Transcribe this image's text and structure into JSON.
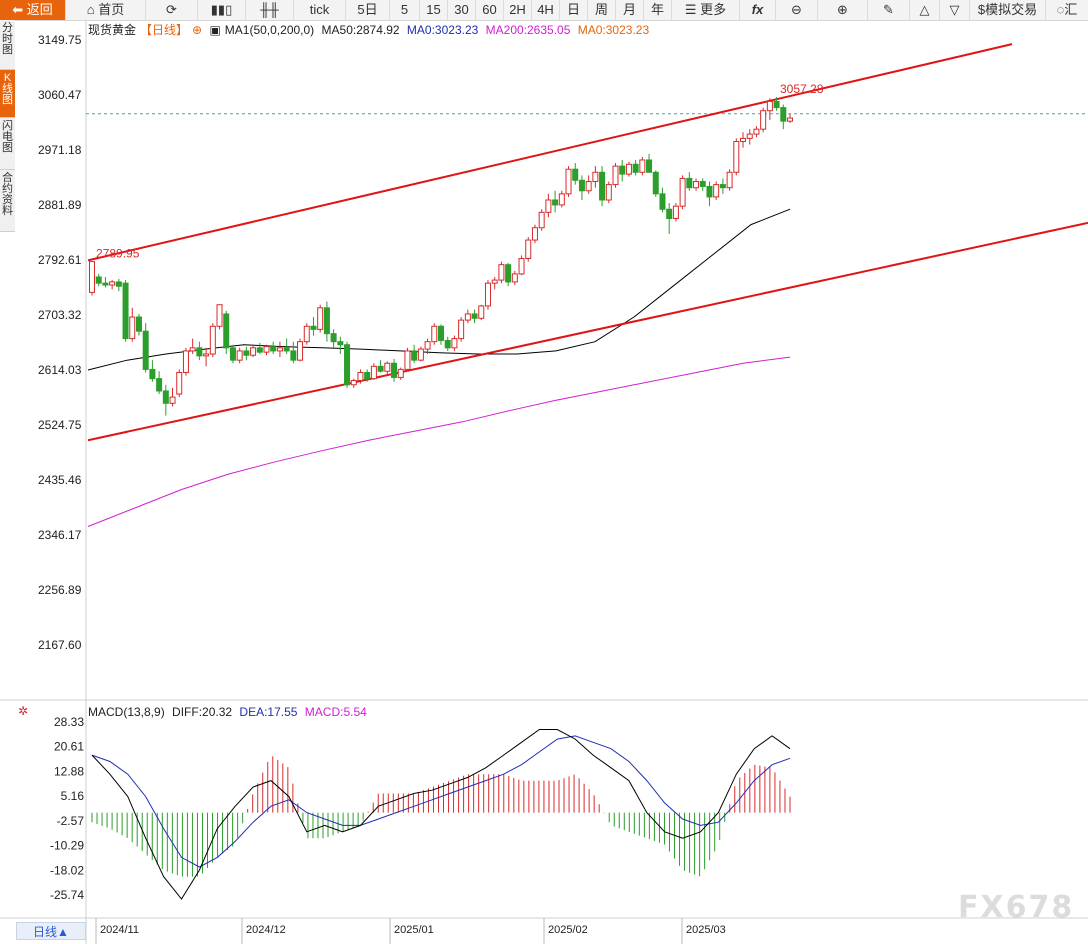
{
  "toolbar": {
    "back": "返回",
    "home": "首页",
    "tick": "tick",
    "five_day": "5日",
    "p5": "5",
    "p15": "15",
    "p30": "30",
    "p60": "60",
    "p2h": "2H",
    "p4h": "4H",
    "day": "日",
    "week": "周",
    "month": "月",
    "year": "年",
    "more": "更多",
    "fx": "fx",
    "sim_trade": "模拟交易",
    "last": "汇"
  },
  "sidebar": {
    "tabs": [
      {
        "label": "分时图"
      },
      {
        "label": "K线图"
      },
      {
        "label": "闪电图"
      },
      {
        "label": "合约资料"
      }
    ]
  },
  "info": {
    "symbol": "现货黄金",
    "period": "【日线】",
    "ma1": "MA1(50,0,200,0)",
    "ma50": "MA50:2874.92",
    "ma0a": "MA0:3023.23",
    "ma200": "MA200:2635.05",
    "ma0b": "MA0:3023.23"
  },
  "macd": {
    "label": "MACD(13,8,9)",
    "diff": "DIFF:20.32",
    "dea": "DEA:17.55",
    "macd": "MACD:5.54"
  },
  "period_button": "日线▲",
  "watermark": "FX678",
  "colors": {
    "up": "#d92a2a",
    "down": "#2b9e2b",
    "ma50": "#000000",
    "ma200": "#d21ed2",
    "dea": "#1f2fb3",
    "channel": "#e01414",
    "accent": "#e8640c"
  },
  "chart_data": {
    "type": "candlestick",
    "price_ticks": [
      "3149.75",
      "3060.47",
      "2971.18",
      "2881.89",
      "2792.61",
      "2703.32",
      "2614.03",
      "2524.75",
      "2435.46",
      "2346.17",
      "2256.89",
      "2167.60"
    ],
    "macd_ticks": [
      "28.33",
      "20.61",
      "12.88",
      "5.16",
      "-2.57",
      "-10.29",
      "-18.02",
      "-25.74"
    ],
    "date_labels": [
      "2024/11",
      "2024/12",
      "2025/01",
      "2025/02",
      "2025/03"
    ],
    "annotations": {
      "high_label": "3057.28",
      "low_label": "2789.95"
    },
    "current_price": 3030,
    "candles": [
      [
        2740,
        2790,
        2735,
        2790
      ],
      [
        2765,
        2770,
        2750,
        2755
      ],
      [
        2755,
        2765,
        2748,
        2752
      ],
      [
        2752,
        2760,
        2745,
        2757
      ],
      [
        2757,
        2762,
        2742,
        2750
      ],
      [
        2755,
        2760,
        2660,
        2665
      ],
      [
        2665,
        2715,
        2660,
        2700
      ],
      [
        2700,
        2705,
        2670,
        2677
      ],
      [
        2677,
        2690,
        2610,
        2615
      ],
      [
        2615,
        2630,
        2595,
        2600
      ],
      [
        2600,
        2612,
        2575,
        2580
      ],
      [
        2580,
        2590,
        2540,
        2560
      ],
      [
        2560,
        2585,
        2555,
        2570
      ],
      [
        2575,
        2615,
        2570,
        2610
      ],
      [
        2610,
        2650,
        2605,
        2645
      ],
      [
        2645,
        2665,
        2640,
        2650
      ],
      [
        2650,
        2660,
        2630,
        2637
      ],
      [
        2637,
        2650,
        2620,
        2640
      ],
      [
        2640,
        2690,
        2635,
        2685
      ],
      [
        2685,
        2720,
        2680,
        2720
      ],
      [
        2705,
        2710,
        2640,
        2650
      ],
      [
        2650,
        2655,
        2625,
        2630
      ],
      [
        2630,
        2650,
        2625,
        2645
      ],
      [
        2645,
        2652,
        2630,
        2638
      ],
      [
        2638,
        2655,
        2635,
        2650
      ],
      [
        2650,
        2658,
        2640,
        2643
      ],
      [
        2643,
        2655,
        2638,
        2652
      ],
      [
        2652,
        2660,
        2640,
        2645
      ],
      [
        2645,
        2660,
        2635,
        2650
      ],
      [
        2650,
        2665,
        2640,
        2645
      ],
      [
        2645,
        2660,
        2625,
        2630
      ],
      [
        2630,
        2665,
        2628,
        2660
      ],
      [
        2660,
        2690,
        2655,
        2685
      ],
      [
        2685,
        2700,
        2670,
        2680
      ],
      [
        2680,
        2720,
        2675,
        2715
      ],
      [
        2715,
        2725,
        2660,
        2673
      ],
      [
        2673,
        2680,
        2650,
        2660
      ],
      [
        2660,
        2668,
        2640,
        2655
      ],
      [
        2655,
        2660,
        2585,
        2590
      ],
      [
        2590,
        2600,
        2585,
        2597
      ],
      [
        2597,
        2615,
        2592,
        2610
      ],
      [
        2610,
        2615,
        2595,
        2600
      ],
      [
        2600,
        2625,
        2598,
        2620
      ],
      [
        2620,
        2630,
        2610,
        2612
      ],
      [
        2612,
        2628,
        2605,
        2625
      ],
      [
        2625,
        2632,
        2595,
        2602
      ],
      [
        2602,
        2618,
        2598,
        2615
      ],
      [
        2615,
        2650,
        2612,
        2645
      ],
      [
        2645,
        2655,
        2625,
        2630
      ],
      [
        2630,
        2652,
        2628,
        2648
      ],
      [
        2648,
        2665,
        2640,
        2660
      ],
      [
        2660,
        2690,
        2655,
        2685
      ],
      [
        2685,
        2688,
        2655,
        2662
      ],
      [
        2662,
        2668,
        2645,
        2650
      ],
      [
        2650,
        2670,
        2645,
        2665
      ],
      [
        2665,
        2700,
        2660,
        2695
      ],
      [
        2695,
        2712,
        2690,
        2705
      ],
      [
        2705,
        2712,
        2690,
        2698
      ],
      [
        2698,
        2720,
        2695,
        2718
      ],
      [
        2718,
        2760,
        2712,
        2755
      ],
      [
        2755,
        2765,
        2745,
        2760
      ],
      [
        2760,
        2790,
        2755,
        2785
      ],
      [
        2785,
        2788,
        2750,
        2757
      ],
      [
        2757,
        2775,
        2752,
        2770
      ],
      [
        2770,
        2800,
        2768,
        2795
      ],
      [
        2795,
        2830,
        2790,
        2825
      ],
      [
        2825,
        2850,
        2820,
        2845
      ],
      [
        2845,
        2875,
        2840,
        2870
      ],
      [
        2870,
        2900,
        2862,
        2890
      ],
      [
        2890,
        2905,
        2870,
        2882
      ],
      [
        2882,
        2905,
        2878,
        2900
      ],
      [
        2900,
        2945,
        2895,
        2940
      ],
      [
        2940,
        2950,
        2915,
        2922
      ],
      [
        2922,
        2930,
        2890,
        2905
      ],
      [
        2905,
        2930,
        2900,
        2920
      ],
      [
        2920,
        2945,
        2910,
        2935
      ],
      [
        2935,
        2945,
        2880,
        2890
      ],
      [
        2890,
        2920,
        2885,
        2915
      ],
      [
        2915,
        2950,
        2910,
        2945
      ],
      [
        2945,
        2955,
        2920,
        2932
      ],
      [
        2932,
        2952,
        2928,
        2948
      ],
      [
        2948,
        2955,
        2930,
        2935
      ],
      [
        2935,
        2960,
        2930,
        2955
      ],
      [
        2955,
        2965,
        2940,
        2935
      ],
      [
        2935,
        2938,
        2895,
        2900
      ],
      [
        2900,
        2910,
        2870,
        2875
      ],
      [
        2875,
        2885,
        2835,
        2860
      ],
      [
        2860,
        2885,
        2855,
        2880
      ],
      [
        2880,
        2930,
        2875,
        2925
      ],
      [
        2925,
        2935,
        2905,
        2910
      ],
      [
        2910,
        2925,
        2905,
        2920
      ],
      [
        2920,
        2925,
        2905,
        2912
      ],
      [
        2912,
        2920,
        2880,
        2895
      ],
      [
        2895,
        2920,
        2890,
        2915
      ],
      [
        2915,
        2925,
        2900,
        2910
      ],
      [
        2910,
        2940,
        2905,
        2935
      ],
      [
        2935,
        2990,
        2930,
        2985
      ],
      [
        2985,
        3000,
        2975,
        2990
      ],
      [
        2990,
        3005,
        2980,
        2997
      ],
      [
        2997,
        3010,
        2992,
        3005
      ],
      [
        3005,
        3040,
        3000,
        3035
      ],
      [
        3035,
        3055,
        3020,
        3050
      ],
      [
        3050,
        3057,
        3035,
        3040
      ],
      [
        3040,
        3045,
        3005,
        3018
      ],
      [
        3018,
        3030,
        3015,
        3023
      ]
    ],
    "ma50": {
      "name": "MA50",
      "values": [
        2614,
        2630,
        2640,
        2648,
        2655,
        2652,
        2650,
        2648,
        2645,
        2642,
        2640,
        2640,
        2645,
        2660,
        2700,
        2750,
        2800,
        2850,
        2875
      ]
    },
    "ma200": {
      "name": "MA200",
      "values": [
        2360,
        2390,
        2420,
        2445,
        2465,
        2483,
        2500,
        2515,
        2530,
        2548,
        2565,
        2580,
        2595,
        2610,
        2625,
        2635
      ]
    },
    "channel": {
      "upper": [
        2792,
        3143
      ],
      "lower": [
        2500,
        2853
      ]
    },
    "macd_series": {
      "diff": [
        18,
        12,
        5,
        -8,
        -20,
        -27,
        -18,
        -5,
        2,
        8,
        10,
        5,
        -6,
        -4,
        -6,
        -4,
        2,
        4,
        6,
        7,
        9,
        11,
        14,
        18,
        22,
        26,
        26,
        23,
        18,
        14,
        10,
        0,
        -6,
        -8,
        -6,
        0,
        12,
        20,
        24,
        20
      ],
      "dea": [
        18,
        16,
        12,
        5,
        -5,
        -14,
        -17,
        -14,
        -9,
        -3,
        2,
        4,
        0,
        -2,
        -4,
        -4,
        -2,
        0,
        2,
        4,
        6,
        8,
        10,
        12,
        15,
        19,
        23,
        24,
        22,
        20,
        16,
        10,
        3,
        -2,
        -4,
        -3,
        3,
        10,
        15,
        17
      ],
      "hist": [
        -3,
        -5,
        -8,
        -13,
        -18,
        -20,
        -20,
        -14,
        -10,
        6,
        18,
        14,
        -8,
        -8,
        -6,
        -4,
        6,
        6,
        6,
        8,
        10,
        12,
        12,
        12,
        10,
        10,
        10,
        12,
        6,
        -4,
        -6,
        -8,
        -10,
        -18,
        -20,
        -10,
        10,
        15,
        14,
        5
      ]
    }
  }
}
